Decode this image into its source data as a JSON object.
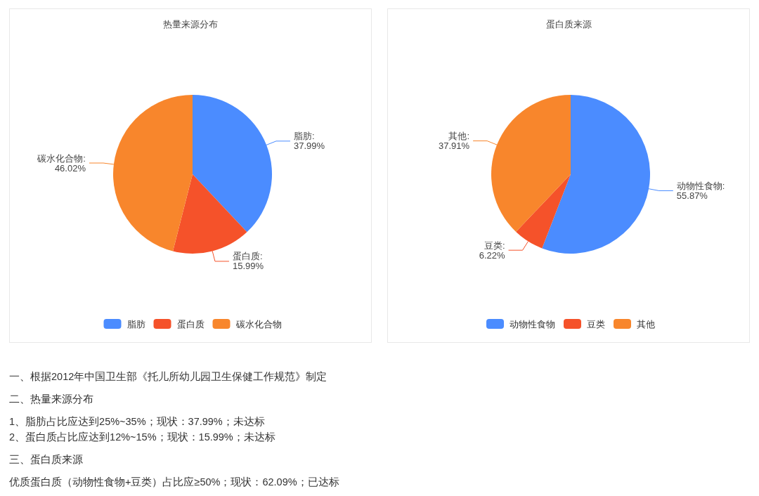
{
  "chart_data": [
    {
      "type": "pie",
      "title": "热量来源分布",
      "categories": [
        "脂肪",
        "蛋白质",
        "碳水化合物"
      ],
      "values": [
        37.99,
        15.99,
        46.02
      ],
      "colors": [
        "#4b8cff",
        "#f5522a",
        "#f8862c"
      ],
      "value_labels": [
        "脂肪:\n37.99%",
        "蛋白质:\n15.99%",
        "碳水化合物:\n46.02%"
      ],
      "legend": "bottom",
      "annotations": [
        "一、根据2012年中国卫生部《托儿所幼儿园卫生保健工作规范》制定",
        "二、热量来源分布",
        "1、脂肪占比应达到25%~35%；现状：37.99%；未达标\n2、蛋白质占比应达到12%~15%；现状：15.99%；未达标",
        "三、蛋白质来源",
        "优质蛋白质（动物性食物+豆类）占比应≥50%；现状：62.09%；已达标"
      ]
    },
    {
      "type": "pie",
      "title": "蛋白质来源",
      "categories": [
        "动物性食物",
        "豆类",
        "其他"
      ],
      "values": [
        55.87,
        6.22,
        37.91
      ],
      "colors": [
        "#4b8cff",
        "#f5522a",
        "#f8862c"
      ],
      "value_labels": [
        "动物性食物:\n55.87%",
        "豆类:\n6.22%",
        "其他:\n37.91%"
      ],
      "legend": "bottom"
    }
  ]
}
